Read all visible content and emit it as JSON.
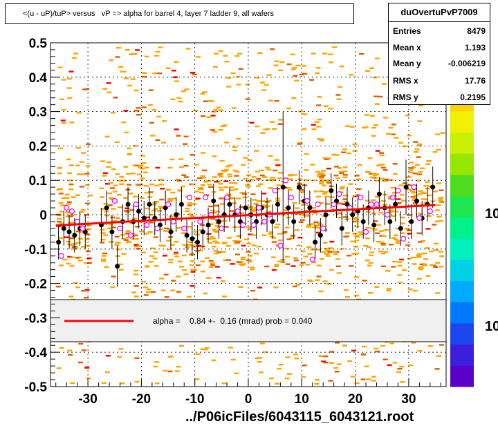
{
  "title": "<(u - uP)/tuP> versus   vP => alpha for barrel 4, layer 7 ladder 9, all wafers",
  "stats": {
    "name": "duOvertuPvP7009",
    "rows": [
      {
        "label": "Entries",
        "value": "8479"
      },
      {
        "label": "Mean x",
        "value": "1.193"
      },
      {
        "label": "Mean y",
        "value": "-0.006219"
      },
      {
        "label": "RMS x",
        "value": "17.76"
      },
      {
        "label": "RMS y",
        "value": "0.2195"
      }
    ]
  },
  "fit": {
    "label": "alpha =    0.84 +-  0.16 (mrad) prob = 0.040",
    "color": "#ff0000",
    "slope_per_unit": 0.00084,
    "intercept": -0.0012
  },
  "footer": "../P06icFiles/6043115_6043121.root",
  "palette_partial_labels": [
    "10",
    "10"
  ],
  "colors": {
    "frame": "#000000",
    "grid": "#000000",
    "density_cell": "#ffa500",
    "density_cell_dark": "#e65c00",
    "density_cell_high": "#ff0000",
    "profile_filled": "#000000",
    "profile_open": "#ff00ff",
    "legend_fill": "#f0f0f0"
  },
  "chart_data": {
    "type": "scatter",
    "description_none": "",
    "xlim": [
      -37,
      37
    ],
    "ylim": [
      -0.5,
      0.5
    ],
    "xticks": [
      "-30",
      "-20",
      "-10",
      "0",
      "10",
      "20",
      "30"
    ],
    "xtick_values": [
      -30,
      -20,
      -10,
      0,
      10,
      20,
      30
    ],
    "yticks": [
      "-0.5",
      "-0.4",
      "-0.3",
      "-0.2",
      "-0.1",
      "0",
      "0.1",
      "0.2",
      "0.3",
      "0.4",
      "0.5"
    ],
    "ytick_values": [
      -0.5,
      -0.4,
      -0.3,
      -0.2,
      -0.1,
      0,
      0.1,
      0.2,
      0.3,
      0.4,
      0.5
    ],
    "grid": true,
    "series": [
      {
        "marker": "filled-circle",
        "x": [
          -35.5,
          -34.5,
          -33.5,
          -32.5,
          -31.5,
          -30.5,
          -27.5,
          -26.5,
          -25.5,
          -24.5,
          -23.5,
          -22.5,
          -21.5,
          -20.5,
          -19.5,
          -18.5,
          -17.5,
          -16.5,
          -15.5,
          -14.5,
          -13.5,
          -12.5,
          -11.5,
          -10.5,
          -9.5,
          -8.5,
          -7.5,
          -6.5,
          -5.5,
          -4.5,
          -3.5,
          -2.5,
          -1.5,
          -0.5,
          0.5,
          1.5,
          2.5,
          3.5,
          4.5,
          5.5,
          6.5,
          7.5,
          8.5,
          9.5,
          10.5,
          11.5,
          12.5,
          13.5,
          14.5,
          15.5,
          16.5,
          17.5,
          18.5,
          19.5,
          20.5,
          21.5,
          22.5,
          23.5,
          24.5,
          25.5,
          26.5,
          27.5,
          28.5,
          29.5,
          30.5,
          31.5,
          32.5,
          33.5,
          34.5
        ],
        "y": [
          -0.08,
          -0.04,
          -0.05,
          -0.06,
          -0.04,
          -0.05,
          -0.03,
          0.02,
          -0.05,
          -0.15,
          -0.02,
          0.03,
          -0.02,
          0.01,
          -0.01,
          0.03,
          -0.01,
          -0.03,
          0.02,
          -0.05,
          0.0,
          0.03,
          -0.06,
          -0.07,
          -0.08,
          -0.05,
          -0.03,
          0.04,
          -0.02,
          0.0,
          0.03,
          0.0,
          -0.02,
          0.02,
          0.0,
          -0.02,
          0.02,
          0.0,
          -0.02,
          0.03,
          0.08,
          0.02,
          -0.02,
          0.08,
          0.04,
          0.02,
          -0.08,
          -0.06,
          0.0,
          0.07,
          0.04,
          -0.04,
          0.03,
          0.0,
          0.01,
          -0.02,
          0.02,
          -0.03,
          0.06,
          0.02,
          -0.02,
          0.03,
          -0.04,
          0.08,
          -0.02,
          0.04,
          -0.01,
          0.03,
          0.08
        ],
        "yerr": [
          0.05,
          0.05,
          0.05,
          0.05,
          0.05,
          0.05,
          0.05,
          0.05,
          0.05,
          0.06,
          0.05,
          0.05,
          0.05,
          0.05,
          0.05,
          0.05,
          0.05,
          0.05,
          0.05,
          0.05,
          0.05,
          0.05,
          0.05,
          0.05,
          0.05,
          0.05,
          0.05,
          0.05,
          0.05,
          0.05,
          0.05,
          0.05,
          0.05,
          0.05,
          0.05,
          0.05,
          0.05,
          0.05,
          0.05,
          0.05,
          0.22,
          0.05,
          0.05,
          0.05,
          0.05,
          0.05,
          0.05,
          0.05,
          0.05,
          0.05,
          0.05,
          0.05,
          0.05,
          0.05,
          0.05,
          0.05,
          0.05,
          0.05,
          0.05,
          0.05,
          0.05,
          0.05,
          0.05,
          0.08,
          0.05,
          0.05,
          0.05,
          0.05,
          0.06
        ]
      },
      {
        "marker": "open-circle",
        "x": [
          -35,
          -34,
          -33,
          -32,
          -31,
          -25,
          -24,
          -22,
          -21,
          -19,
          -17,
          -15,
          -14,
          -12,
          -11,
          -9,
          -8,
          -7,
          -5,
          -4,
          -2,
          -1,
          1,
          2,
          3,
          4,
          5,
          6,
          7,
          8,
          11,
          12,
          13,
          14,
          16,
          17,
          19,
          21,
          22,
          23,
          24,
          26,
          27,
          28,
          29,
          31,
          32,
          34
        ],
        "y": [
          -0.12,
          0.02,
          0.01,
          -0.02,
          -0.04,
          0.04,
          -0.04,
          -0.06,
          0.03,
          -0.03,
          -0.04,
          0.03,
          -0.02,
          -0.04,
          0.05,
          -0.02,
          0.05,
          0.0,
          -0.04,
          0.05,
          0.01,
          -0.03,
          -0.03,
          0.02,
          -0.02,
          0.0,
          0.07,
          -0.09,
          0.1,
          0.05,
          0.04,
          -0.13,
          0.03,
          -0.04,
          0.03,
          0.06,
          0.02,
          0.05,
          -0.05,
          0.03,
          0.03,
          0.0,
          0.05,
          0.07,
          -0.07,
          0.08,
          -0.01,
          0.01
        ],
        "yerr": []
      }
    ],
    "fit_line": {
      "x": [
        -36,
        35
      ],
      "y": [
        -0.0314,
        0.0282
      ]
    }
  }
}
